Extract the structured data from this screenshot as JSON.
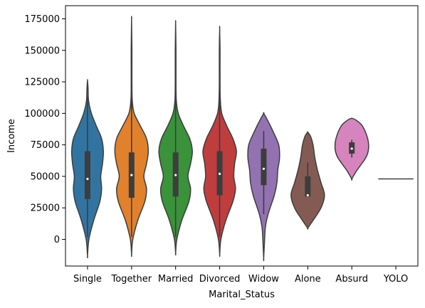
{
  "chart_data": {
    "type": "violin",
    "xlabel": "Marital_Status",
    "ylabel": "Income",
    "ylim": [
      -20000,
      180000
    ],
    "yticks": [
      0,
      25000,
      50000,
      75000,
      100000,
      125000,
      150000,
      175000
    ],
    "grid": false,
    "categories": [
      {
        "label": "Single",
        "color": "#3274a1",
        "median": 48000,
        "q1": 32000,
        "q3": 70000,
        "whisker_low": 2000,
        "whisker_high": 113000,
        "profile": [
          [
            -13000,
            0
          ],
          [
            0,
            0.08
          ],
          [
            15000,
            0.35
          ],
          [
            30000,
            0.7
          ],
          [
            40000,
            0.8
          ],
          [
            50000,
            0.75
          ],
          [
            60000,
            0.85
          ],
          [
            70000,
            0.9
          ],
          [
            80000,
            0.8
          ],
          [
            90000,
            0.5
          ],
          [
            100000,
            0.22
          ],
          [
            110000,
            0.06
          ],
          [
            120000,
            0.03
          ],
          [
            126000,
            0
          ]
        ]
      },
      {
        "label": "Together",
        "color": "#e1812c",
        "median": 51000,
        "q1": 33000,
        "q3": 69000,
        "whisker_low": 2000,
        "whisker_high": 112000,
        "profile": [
          [
            -12000,
            0
          ],
          [
            0,
            0.07
          ],
          [
            15000,
            0.35
          ],
          [
            30000,
            0.75
          ],
          [
            40000,
            0.85
          ],
          [
            50000,
            0.7
          ],
          [
            60000,
            0.85
          ],
          [
            70000,
            0.95
          ],
          [
            80000,
            0.85
          ],
          [
            90000,
            0.5
          ],
          [
            100000,
            0.15
          ],
          [
            110000,
            0.04
          ],
          [
            125000,
            0.02
          ],
          [
            150000,
            0.02
          ],
          [
            174000,
            0
          ]
        ]
      },
      {
        "label": "Married",
        "color": "#3a923a",
        "median": 51000,
        "q1": 34000,
        "q3": 69000,
        "whisker_low": 2000,
        "whisker_high": 112000,
        "profile": [
          [
            -11000,
            0
          ],
          [
            0,
            0.07
          ],
          [
            15000,
            0.35
          ],
          [
            30000,
            0.75
          ],
          [
            40000,
            0.85
          ],
          [
            50000,
            0.7
          ],
          [
            60000,
            0.85
          ],
          [
            70000,
            0.95
          ],
          [
            80000,
            0.8
          ],
          [
            90000,
            0.45
          ],
          [
            100000,
            0.15
          ],
          [
            110000,
            0.04
          ],
          [
            125000,
            0.02
          ],
          [
            150000,
            0.02
          ],
          [
            171000,
            0
          ]
        ]
      },
      {
        "label": "Divorced",
        "color": "#c03d3e",
        "median": 52000,
        "q1": 35000,
        "q3": 70000,
        "whisker_low": 2000,
        "whisker_high": 112000,
        "profile": [
          [
            -12000,
            0
          ],
          [
            0,
            0.07
          ],
          [
            15000,
            0.35
          ],
          [
            30000,
            0.75
          ],
          [
            40000,
            0.9
          ],
          [
            50000,
            0.8
          ],
          [
            60000,
            0.85
          ],
          [
            70000,
            0.95
          ],
          [
            80000,
            0.75
          ],
          [
            90000,
            0.4
          ],
          [
            100000,
            0.12
          ],
          [
            110000,
            0.04
          ],
          [
            125000,
            0.02
          ],
          [
            150000,
            0.02
          ],
          [
            167000,
            0
          ]
        ]
      },
      {
        "label": "Widow",
        "color": "#9372b2",
        "median": 56000,
        "q1": 43000,
        "q3": 72000,
        "whisker_low": 20000,
        "whisker_high": 86000,
        "profile": [
          [
            -15000,
            0
          ],
          [
            0,
            0.05
          ],
          [
            10000,
            0.1
          ],
          [
            20000,
            0.25
          ],
          [
            35000,
            0.6
          ],
          [
            45000,
            0.75
          ],
          [
            55000,
            0.8
          ],
          [
            65000,
            0.9
          ],
          [
            75000,
            0.85
          ],
          [
            85000,
            0.55
          ],
          [
            95000,
            0.2
          ],
          [
            100000,
            0
          ]
        ]
      },
      {
        "label": "Alone",
        "color": "#845b53",
        "median": 35000,
        "q1": 34000,
        "q3": 50000,
        "whisker_low": 34000,
        "whisker_high": 61000,
        "profile": [
          [
            9000,
            0
          ],
          [
            15000,
            0.3
          ],
          [
            25000,
            0.75
          ],
          [
            35000,
            0.95
          ],
          [
            45000,
            0.75
          ],
          [
            55000,
            0.55
          ],
          [
            65000,
            0.4
          ],
          [
            75000,
            0.3
          ],
          [
            82000,
            0.15
          ],
          [
            85000,
            0
          ]
        ]
      },
      {
        "label": "Absurd",
        "color": "#d684bd",
        "median": 72000,
        "q1": 68000,
        "q3": 77000,
        "whisker_low": 65000,
        "whisker_high": 79000,
        "profile": [
          [
            48000,
            0
          ],
          [
            55000,
            0.3
          ],
          [
            65000,
            0.8
          ],
          [
            72000,
            0.95
          ],
          [
            80000,
            0.9
          ],
          [
            90000,
            0.6
          ],
          [
            95000,
            0.2
          ],
          [
            96000,
            0
          ]
        ]
      },
      {
        "label": "YOLO",
        "color": "#7f7f7f",
        "median": 48000,
        "flat": true
      }
    ]
  }
}
